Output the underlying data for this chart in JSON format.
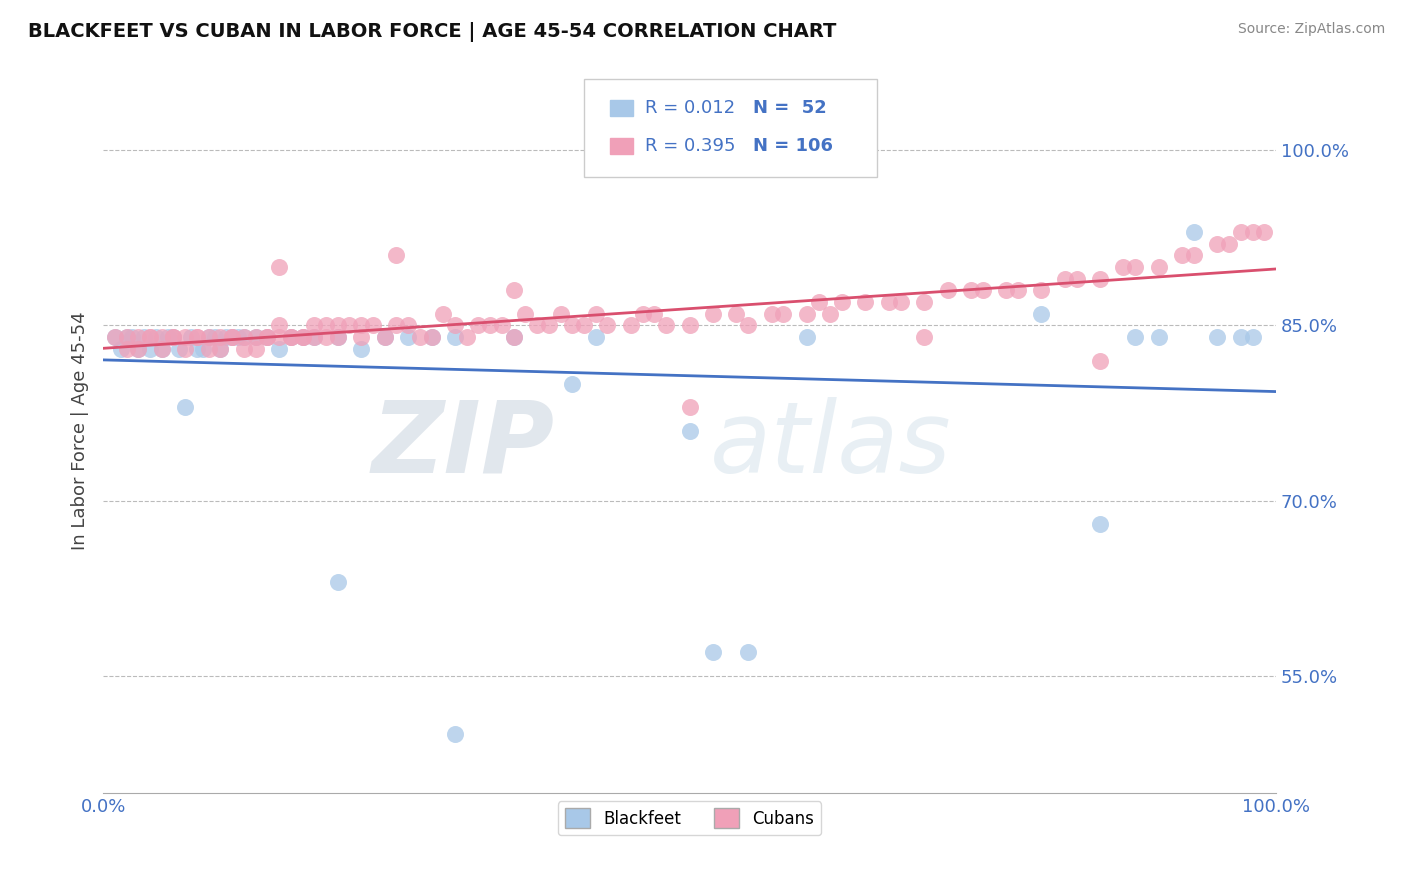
{
  "title": "BLACKFEET VS CUBAN IN LABOR FORCE | AGE 45-54 CORRELATION CHART",
  "source": "Source: ZipAtlas.com",
  "ylabel": "In Labor Force | Age 45-54",
  "xlim": [
    0.0,
    1.0
  ],
  "ylim": [
    0.45,
    1.07
  ],
  "yticks": [
    0.55,
    0.7,
    0.85,
    1.0
  ],
  "ytick_labels": [
    "55.0%",
    "70.0%",
    "85.0%",
    "100.0%"
  ],
  "xtick_labels": [
    "0.0%",
    "100.0%"
  ],
  "blackfeet_R": 0.012,
  "blackfeet_N": 52,
  "cuban_R": 0.395,
  "cuban_N": 106,
  "blackfeet_color": "#a8c8e8",
  "cuban_color": "#f0a0b8",
  "blackfeet_line_color": "#4472C4",
  "cuban_line_color": "#d94f6e",
  "tick_color": "#4472C4",
  "background_color": "#FFFFFF",
  "grid_color": "#BBBBBB",
  "title_color": "#111111",
  "source_color": "#888888",
  "watermark_color": "#ccdde8",
  "blackfeet_x": [
    0.01,
    0.015,
    0.02,
    0.025,
    0.03,
    0.035,
    0.04,
    0.045,
    0.05,
    0.055,
    0.06,
    0.065,
    0.07,
    0.075,
    0.08,
    0.085,
    0.09,
    0.095,
    0.1,
    0.105,
    0.11,
    0.115,
    0.12,
    0.13,
    0.14,
    0.15,
    0.16,
    0.17,
    0.18,
    0.2,
    0.22,
    0.24,
    0.26,
    0.28,
    0.3,
    0.35,
    0.4,
    0.42,
    0.5,
    0.52,
    0.55,
    0.6,
    0.8,
    0.85,
    0.88,
    0.9,
    0.93,
    0.95,
    0.97,
    0.98,
    0.2,
    0.3
  ],
  "blackfeet_y": [
    0.84,
    0.83,
    0.84,
    0.84,
    0.83,
    0.84,
    0.83,
    0.84,
    0.83,
    0.84,
    0.84,
    0.83,
    0.78,
    0.84,
    0.83,
    0.83,
    0.84,
    0.84,
    0.83,
    0.84,
    0.84,
    0.84,
    0.84,
    0.84,
    0.84,
    0.83,
    0.84,
    0.84,
    0.84,
    0.84,
    0.83,
    0.84,
    0.84,
    0.84,
    0.84,
    0.84,
    0.8,
    0.84,
    0.76,
    0.57,
    0.57,
    0.84,
    0.86,
    0.68,
    0.84,
    0.84,
    0.93,
    0.84,
    0.84,
    0.84,
    0.63,
    0.5
  ],
  "cuban_x": [
    0.01,
    0.02,
    0.02,
    0.03,
    0.03,
    0.04,
    0.04,
    0.05,
    0.05,
    0.06,
    0.06,
    0.07,
    0.07,
    0.08,
    0.08,
    0.09,
    0.09,
    0.1,
    0.1,
    0.11,
    0.11,
    0.12,
    0.12,
    0.13,
    0.13,
    0.14,
    0.14,
    0.15,
    0.15,
    0.16,
    0.16,
    0.17,
    0.17,
    0.18,
    0.18,
    0.19,
    0.19,
    0.2,
    0.2,
    0.21,
    0.22,
    0.22,
    0.23,
    0.24,
    0.25,
    0.26,
    0.27,
    0.28,
    0.29,
    0.3,
    0.31,
    0.32,
    0.33,
    0.34,
    0.35,
    0.36,
    0.37,
    0.38,
    0.39,
    0.4,
    0.41,
    0.42,
    0.43,
    0.45,
    0.46,
    0.47,
    0.48,
    0.5,
    0.52,
    0.54,
    0.55,
    0.57,
    0.58,
    0.6,
    0.61,
    0.62,
    0.63,
    0.65,
    0.67,
    0.68,
    0.7,
    0.72,
    0.74,
    0.75,
    0.77,
    0.78,
    0.8,
    0.82,
    0.83,
    0.85,
    0.87,
    0.88,
    0.9,
    0.92,
    0.93,
    0.95,
    0.96,
    0.97,
    0.98,
    0.99,
    0.5,
    0.7,
    0.85,
    0.35,
    0.25,
    0.15
  ],
  "cuban_y": [
    0.84,
    0.84,
    0.83,
    0.84,
    0.83,
    0.84,
    0.84,
    0.83,
    0.84,
    0.84,
    0.84,
    0.84,
    0.83,
    0.84,
    0.84,
    0.84,
    0.83,
    0.84,
    0.83,
    0.84,
    0.84,
    0.83,
    0.84,
    0.84,
    0.83,
    0.84,
    0.84,
    0.84,
    0.85,
    0.84,
    0.84,
    0.84,
    0.84,
    0.85,
    0.84,
    0.84,
    0.85,
    0.84,
    0.85,
    0.85,
    0.84,
    0.85,
    0.85,
    0.84,
    0.85,
    0.85,
    0.84,
    0.84,
    0.86,
    0.85,
    0.84,
    0.85,
    0.85,
    0.85,
    0.84,
    0.86,
    0.85,
    0.85,
    0.86,
    0.85,
    0.85,
    0.86,
    0.85,
    0.85,
    0.86,
    0.86,
    0.85,
    0.85,
    0.86,
    0.86,
    0.85,
    0.86,
    0.86,
    0.86,
    0.87,
    0.86,
    0.87,
    0.87,
    0.87,
    0.87,
    0.87,
    0.88,
    0.88,
    0.88,
    0.88,
    0.88,
    0.88,
    0.89,
    0.89,
    0.89,
    0.9,
    0.9,
    0.9,
    0.91,
    0.91,
    0.92,
    0.92,
    0.93,
    0.93,
    0.93,
    0.78,
    0.84,
    0.82,
    0.88,
    0.91,
    0.9
  ]
}
